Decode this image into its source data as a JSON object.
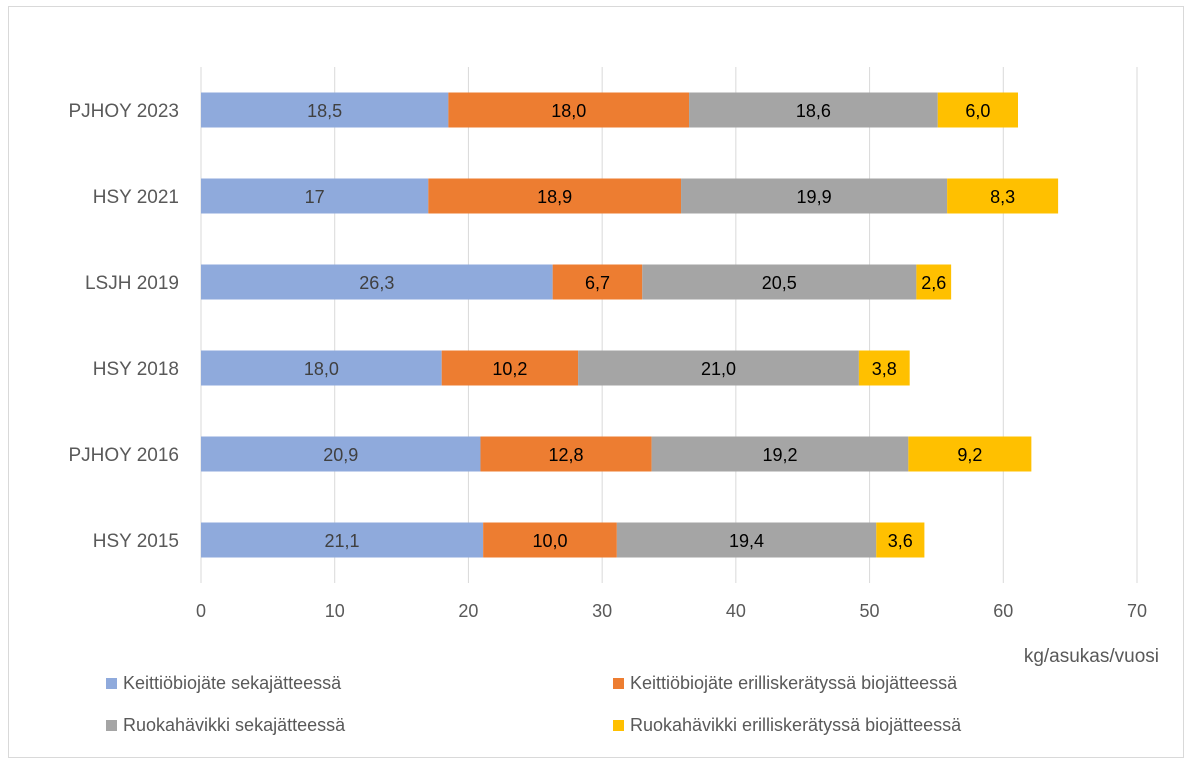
{
  "chart_data": {
    "type": "bar",
    "orientation": "horizontal",
    "stacked": true,
    "categories": [
      "PJHOY 2023",
      "HSY 2021",
      "LSJH 2019",
      "HSY 2018",
      "PJHOY 2016",
      "HSY 2015"
    ],
    "series": [
      {
        "name": "Keittiöbiojäte sekajätteessä",
        "color": "#8faadc",
        "label_color": "#404040",
        "values": [
          18.5,
          17,
          26.3,
          18.0,
          20.9,
          21.1
        ],
        "labels": [
          "18,5",
          "17",
          "26,3",
          "18,0",
          "20,9",
          "21,1"
        ]
      },
      {
        "name": "Keittiöbiojäte erilliskerätyssä biojätteessä",
        "color": "#ed7d31",
        "label_color": "#000000",
        "values": [
          18.0,
          18.9,
          6.7,
          10.2,
          12.8,
          10.0
        ],
        "labels": [
          "18,0",
          "18,9",
          "6,7",
          "10,2",
          "12,8",
          "10,0"
        ]
      },
      {
        "name": "Ruokahävikki sekajätteessä",
        "color": "#a5a5a5",
        "label_color": "#000000",
        "values": [
          18.6,
          19.9,
          20.5,
          21.0,
          19.2,
          19.4
        ],
        "labels": [
          "18,6",
          "19,9",
          "20,5",
          "21,0",
          "19,2",
          "19,4"
        ]
      },
      {
        "name": "Ruokahävikki erilliskerätyssä biojätteessä",
        "color": "#ffc000",
        "label_color": "#000000",
        "values": [
          6.0,
          8.3,
          2.6,
          3.8,
          9.2,
          3.6
        ],
        "labels": [
          "6,0",
          "8,3",
          "2,6",
          "3,8",
          "9,2",
          "3,6"
        ]
      }
    ],
    "xlim": [
      0,
      70
    ],
    "xticks": [
      0,
      10,
      20,
      30,
      40,
      50,
      60,
      70
    ],
    "xlabel": "kg/asukas/vuosi",
    "ylabel": "",
    "title": "",
    "grid": "vertical",
    "legend_position": "bottom"
  }
}
